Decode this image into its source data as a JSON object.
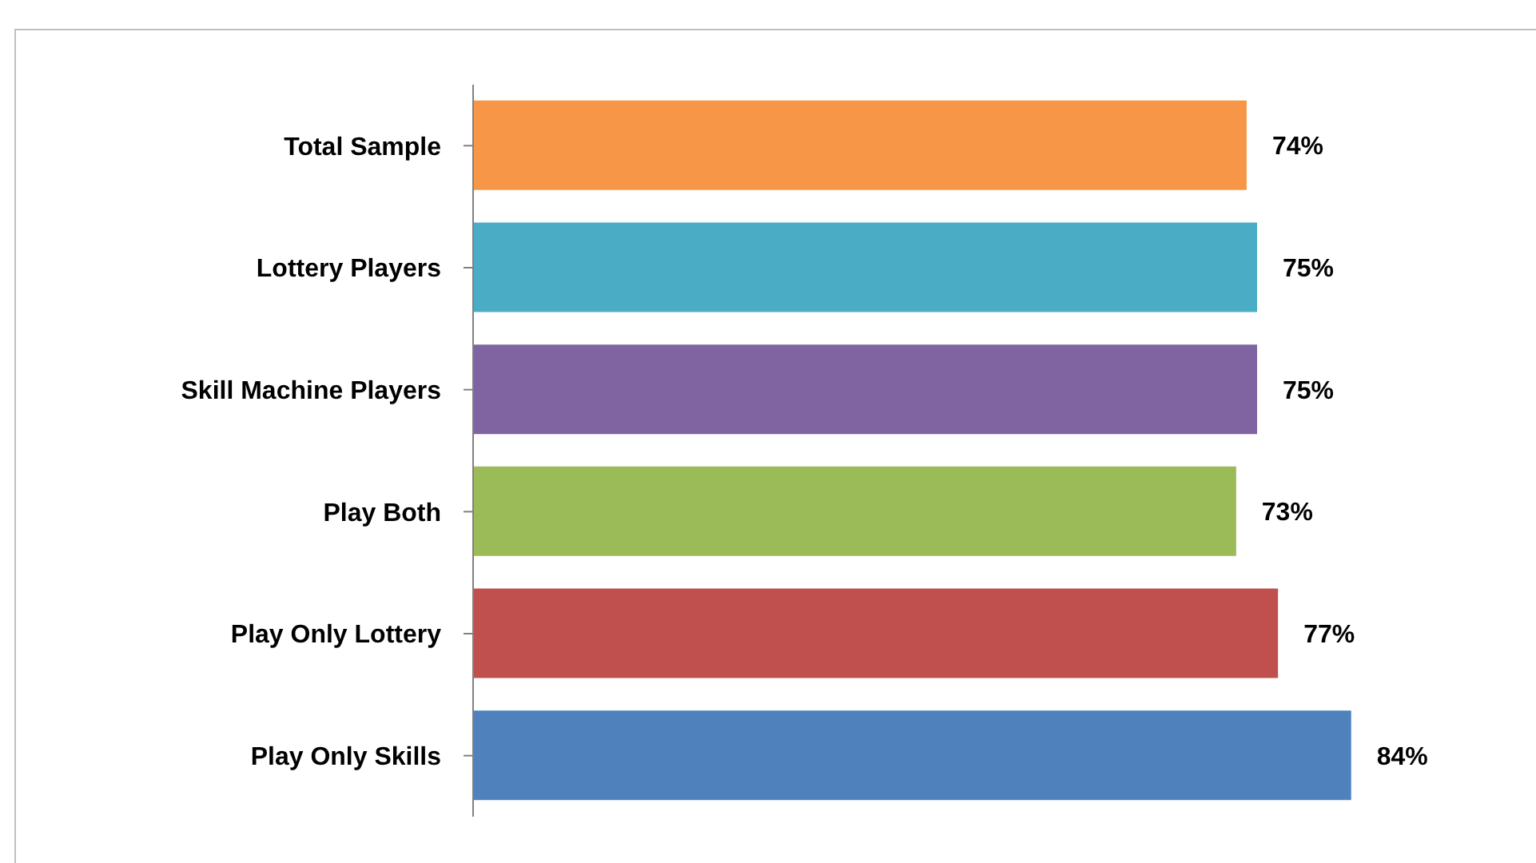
{
  "chart_data": {
    "type": "bar",
    "orientation": "horizontal",
    "categories": [
      "Total Sample",
      "Lottery Players",
      "Skill Machine Players",
      "Play Both",
      "Play Only Lottery",
      "Play Only Skills"
    ],
    "values": [
      74,
      75,
      75,
      73,
      77,
      84
    ],
    "colors": [
      "#f79646",
      "#4bacc6",
      "#8064a2",
      "#9bbb59",
      "#c0504d",
      "#4f81bd"
    ],
    "value_labels": [
      "74%",
      "75%",
      "75%",
      "73%",
      "77%",
      "84%"
    ],
    "legend": false,
    "grid": false
  }
}
